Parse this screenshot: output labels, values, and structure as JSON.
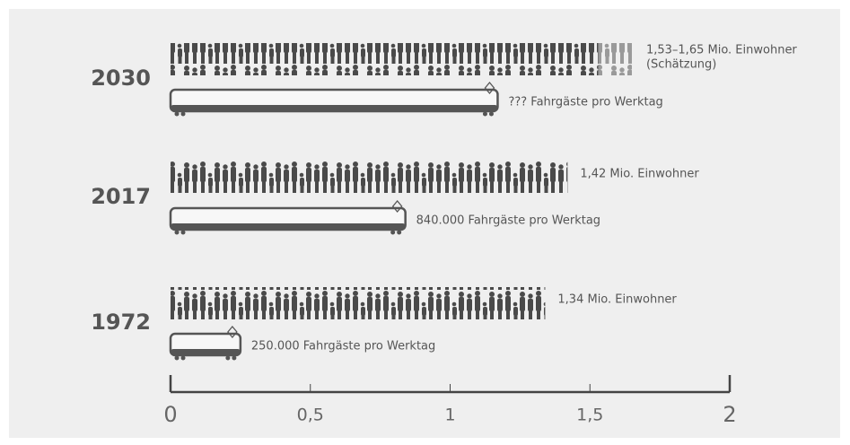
{
  "chart_data": {
    "type": "pictogram",
    "categories": [
      "2030",
      "2017",
      "1972"
    ],
    "population": {
      "values": [
        1.53,
        1.42,
        1.34
      ],
      "color": "#4a4a4a",
      "labels": [
        "1,53–1,65 Mio. Einwohner",
        "1,42 Mio. Einwohner",
        "1,34 Mio. Einwohner"
      ]
    },
    "population_high": {
      "values": [
        1.65,
        null,
        null
      ],
      "color": "#9a9a9a",
      "note": "(Schätzung)"
    },
    "riders": {
      "values": [
        1.17,
        0.84,
        0.25
      ],
      "color": "#555555",
      "labels": [
        "??? Fahrgäste pro Werktag",
        "840.000 Fahrgäste pro Werktag",
        "250.000 Fahrgäste pro Werktag"
      ]
    },
    "xlim": [
      0,
      2
    ],
    "xticks": [
      0,
      {
        "value": 0.5,
        "label": "0,5"
      },
      1,
      {
        "value": 1.5,
        "label": "1,5"
      },
      2
    ]
  }
}
